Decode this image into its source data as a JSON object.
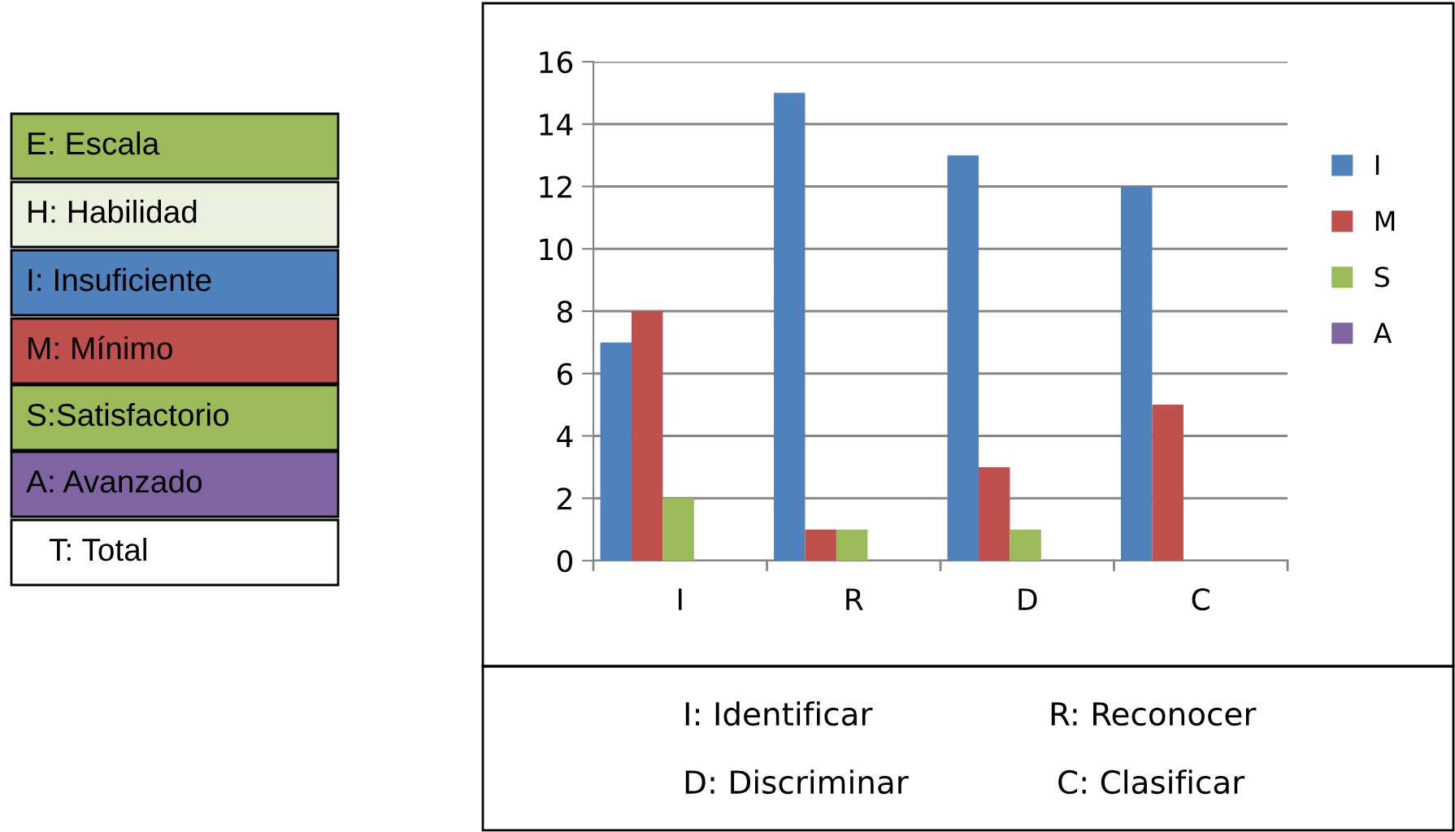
{
  "chart_data": {
    "type": "bar",
    "categories": [
      "I",
      "R",
      "D",
      "C"
    ],
    "series": [
      {
        "name": "I",
        "color": "#4f81bd",
        "values": [
          7,
          15,
          13,
          12
        ]
      },
      {
        "name": "M",
        "color": "#c0504d",
        "values": [
          8,
          1,
          3,
          5
        ]
      },
      {
        "name": "S",
        "color": "#9bbb59",
        "values": [
          2,
          1,
          1,
          0
        ]
      },
      {
        "name": "A",
        "color": "#8064a2",
        "values": [
          0,
          0,
          0,
          0
        ]
      }
    ],
    "ylim": [
      0,
      16
    ],
    "yticks": [
      0,
      2,
      4,
      6,
      8,
      10,
      12,
      14,
      16
    ],
    "grid": "y",
    "legend": "right",
    "annotations": [
      "E: Escala",
      "H: Habilidad",
      "I: Insuficiente",
      "M: Mínimo",
      "S:Satisfactorio",
      "A: Avanzado",
      "T: Total",
      "I: Identificar",
      "R: Reconocer",
      "D: Discriminar",
      "C: Clasificar"
    ]
  }
}
